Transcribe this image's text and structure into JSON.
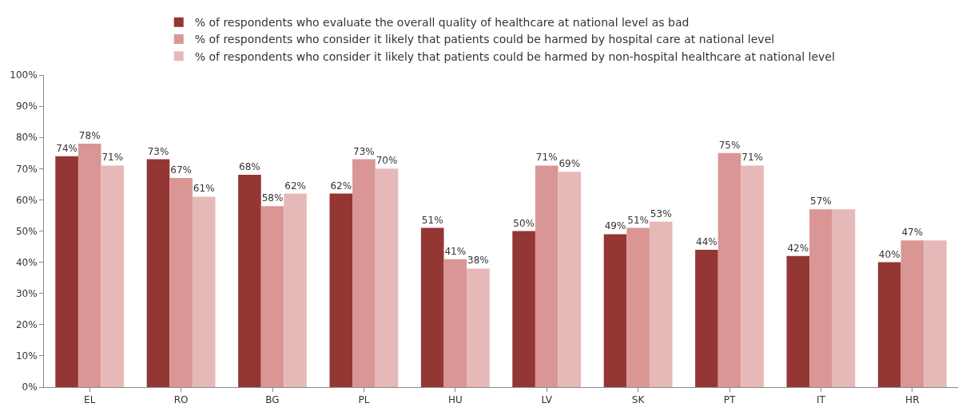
{
  "chart_data": {
    "type": "bar",
    "categories": [
      "EL",
      "RO",
      "BG",
      "PL",
      "HU",
      "LV",
      "SK",
      "PT",
      "IT",
      "HR"
    ],
    "series": [
      {
        "name": "% of respondents who evaluate the overall quality of healthcare at national level as bad",
        "color": "#943634",
        "values": [
          74,
          73,
          68,
          62,
          51,
          50,
          49,
          44,
          42,
          40
        ],
        "value_labels": [
          "74%",
          "73%",
          "68%",
          "62%",
          "51%",
          "50%",
          "49%",
          "44%",
          "42%",
          "40%"
        ]
      },
      {
        "name": "% of respondents who consider it likely that patients could be harmed by hospital care at national level",
        "color": "#d99694",
        "values": [
          78,
          67,
          58,
          73,
          41,
          71,
          51,
          75,
          57,
          47
        ],
        "value_labels": [
          "78%",
          "67%",
          "58%",
          "73%",
          "41%",
          "71%",
          "51%",
          "75%",
          "57%",
          "47%"
        ]
      },
      {
        "name": "% of respondents who consider it likely that patients could be harmed by non-hospital healthcare at national level",
        "color": "#e6b9b8",
        "values": [
          71,
          61,
          62,
          70,
          38,
          69,
          53,
          71,
          57,
          47
        ],
        "value_labels": [
          "71%",
          "61%",
          "62%",
          "70%",
          "38%",
          "69%",
          "53%",
          "71%",
          null,
          null
        ]
      }
    ],
    "ylim": [
      0,
      100
    ],
    "yticks": [
      {
        "value": 0,
        "label": "0%"
      },
      {
        "value": 10,
        "label": "10%"
      },
      {
        "value": 20,
        "label": "20%"
      },
      {
        "value": 30,
        "label": "30%"
      },
      {
        "value": 40,
        "label": "40%"
      },
      {
        "value": 50,
        "label": "50%"
      },
      {
        "value": 60,
        "label": "60%"
      },
      {
        "value": 70,
        "label": "70%"
      },
      {
        "value": 80,
        "label": "80%"
      },
      {
        "value": 90,
        "label": "90%"
      },
      {
        "value": 100,
        "label": "100%"
      }
    ],
    "grid": false,
    "legend": "top"
  }
}
